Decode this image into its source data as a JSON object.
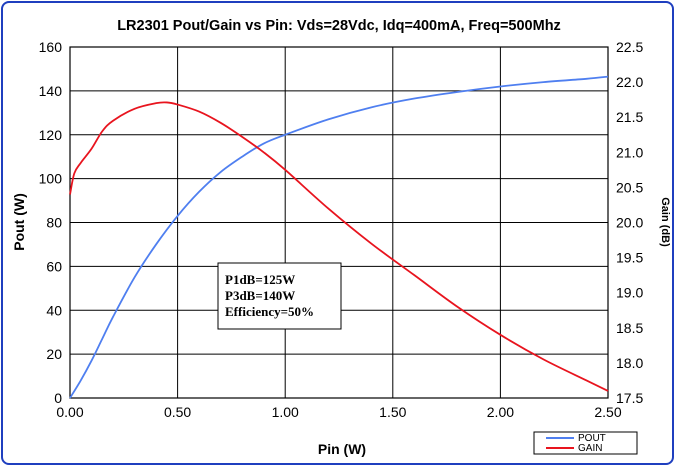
{
  "chart_data": {
    "type": "line",
    "title": "LR2301  Pout/Gain vs Pin: Vds=28Vdc, Idq=400mA, Freq=500Mhz",
    "xlabel": "Pin (W)",
    "ylabel": "Pout (W)",
    "y2label": "Gain (dB)",
    "xlim": [
      0,
      2.5
    ],
    "ylim": [
      0,
      160
    ],
    "y2lim": [
      17.5,
      22.5
    ],
    "x_ticks": [
      "0.00",
      "0.50",
      "1.00",
      "1.50",
      "2.00",
      "2.50"
    ],
    "y_ticks": [
      "0",
      "20",
      "40",
      "60",
      "80",
      "100",
      "120",
      "140",
      "160"
    ],
    "y2_ticks": [
      "17.5",
      "18.0",
      "18.5",
      "19.0",
      "19.5",
      "20.0",
      "20.5",
      "21.0",
      "21.5",
      "22.0",
      "22.5"
    ],
    "grid": true,
    "legend_position": "bottom-right",
    "series": [
      {
        "name": "POUT",
        "axis": "left",
        "color": "#4f7ff0",
        "x": [
          0,
          0.05,
          0.1,
          0.15,
          0.2,
          0.3,
          0.4,
          0.5,
          0.6,
          0.7,
          0.8,
          0.9,
          1.0,
          1.2,
          1.4,
          1.6,
          1.8,
          2.0,
          2.2,
          2.4,
          2.5
        ],
        "y": [
          0,
          8,
          17,
          27,
          37,
          55,
          70,
          83,
          94,
          103,
          110,
          116,
          120,
          127,
          132.5,
          136.5,
          139.5,
          142,
          144,
          145.5,
          146.5
        ]
      },
      {
        "name": "GAIN",
        "axis": "right",
        "color": "#e8141e",
        "x": [
          0,
          0.02,
          0.05,
          0.1,
          0.15,
          0.2,
          0.3,
          0.4,
          0.45,
          0.5,
          0.6,
          0.7,
          0.8,
          0.9,
          1.0,
          1.2,
          1.4,
          1.6,
          1.8,
          2.0,
          2.2,
          2.4,
          2.5
        ],
        "y": [
          20.4,
          20.7,
          20.85,
          21.05,
          21.3,
          21.45,
          21.62,
          21.7,
          21.71,
          21.68,
          21.58,
          21.42,
          21.22,
          21.0,
          20.75,
          20.2,
          19.7,
          19.25,
          18.8,
          18.4,
          18.05,
          17.75,
          17.6
        ]
      }
    ],
    "annotation": {
      "lines": [
        "P1dB=125W",
        "P3dB=140W",
        "Efficiency=50%"
      ]
    }
  }
}
